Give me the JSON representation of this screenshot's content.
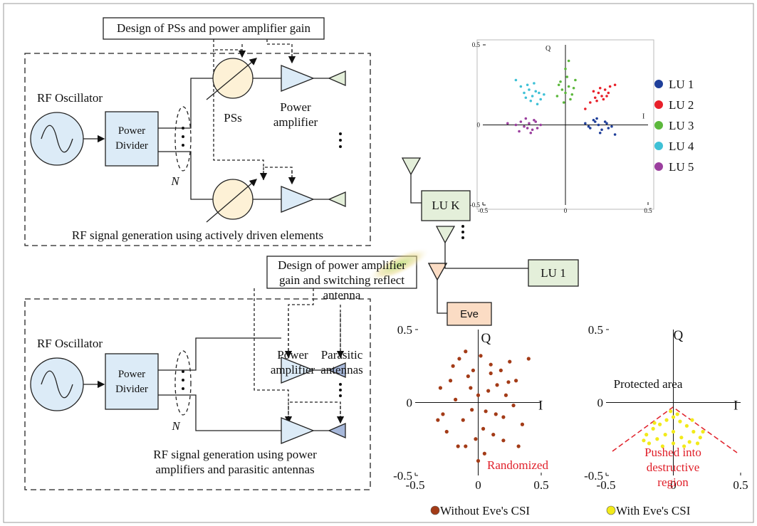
{
  "top_panel": {
    "label": "Design of PSs and power amplifier gain",
    "oscillator": "RF Oscillator",
    "divider": "Power Divider",
    "ps": "PSs",
    "amplifier": "Power amplifier",
    "n": "N",
    "caption": "RF signal generation using actively driven elements"
  },
  "bottom_panel": {
    "label": "Design of power amplifier gain and switching reflect antenna",
    "oscillator": "RF Oscillator",
    "divider": "Power Divider",
    "amplifier": "Power amplifier",
    "parasitic": "Parasitic antennas",
    "n": "N",
    "caption": "RF signal generation using power amplifiers and parasitic antennas"
  },
  "nodes": {
    "luk": "LU K",
    "lu1": "LU 1",
    "eve": "Eve"
  },
  "chart_data": [
    {
      "type": "scatter",
      "xlabel": "I",
      "ylabel": "Q",
      "xlim": [
        -0.5,
        0.5
      ],
      "ylim": [
        -0.5,
        0.5
      ],
      "xticks": [
        -0.5,
        0,
        0.5
      ],
      "yticks": [
        -0.5,
        0,
        0.5
      ],
      "legend": "right",
      "series": [
        {
          "name": "LU 1",
          "color": "#1f3f9a",
          "x": [
            0.12,
            0.15,
            0.18,
            0.2,
            0.22,
            0.25,
            0.28,
            0.17,
            0.21,
            0.24,
            0.14,
            0.3,
            0.19,
            0.26
          ],
          "y": [
            0.01,
            -0.02,
            0.02,
            0,
            -0.03,
            0.01,
            -0.01,
            0.03,
            -0.05,
            0.02,
            -0.01,
            -0.06,
            0.04,
            -0.02
          ]
        },
        {
          "name": "LU 2",
          "color": "#e8202a",
          "x": [
            0.15,
            0.18,
            0.2,
            0.22,
            0.24,
            0.27,
            0.19,
            0.23,
            0.26,
            0.3,
            0.17,
            0.21,
            0.25,
            0.12
          ],
          "y": [
            0.14,
            0.17,
            0.2,
            0.18,
            0.22,
            0.24,
            0.15,
            0.16,
            0.2,
            0.25,
            0.21,
            0.23,
            0.18,
            0.1
          ]
        },
        {
          "name": "LU 3",
          "color": "#5cb83c",
          "x": [
            -0.05,
            -0.02,
            0,
            0.02,
            0.04,
            -0.03,
            0.01,
            0.03,
            -0.01,
            0.05,
            0,
            -0.04,
            0.02,
            0.06
          ],
          "y": [
            0.18,
            0.22,
            0.2,
            0.24,
            0.19,
            0.27,
            0.3,
            0.16,
            0.14,
            0.23,
            0.35,
            0.25,
            0.4,
            0.28
          ]
        },
        {
          "name": "LU 4",
          "color": "#3fc1d6",
          "x": [
            -0.25,
            -0.22,
            -0.2,
            -0.18,
            -0.15,
            -0.23,
            -0.19,
            -0.16,
            -0.27,
            -0.21,
            -0.13,
            -0.3,
            -0.17,
            -0.24
          ],
          "y": [
            0.2,
            0.22,
            0.18,
            0.21,
            0.16,
            0.25,
            0.26,
            0.2,
            0.24,
            0.15,
            0.19,
            0.28,
            0.13,
            0.17
          ]
        },
        {
          "name": "LU 5",
          "color": "#9b3f9e",
          "x": [
            -0.3,
            -0.27,
            -0.25,
            -0.22,
            -0.2,
            -0.18,
            -0.15,
            -0.24,
            -0.21,
            -0.17,
            -0.28,
            -0.19,
            -0.35,
            -0.23
          ],
          "y": [
            0,
            0.02,
            -0.01,
            0.01,
            -0.03,
            0.02,
            0,
            0.04,
            -0.05,
            -0.02,
            -0.04,
            0.03,
            0.01,
            -0.02
          ]
        }
      ]
    },
    {
      "type": "scatter",
      "xlabel": "I",
      "ylabel": "Q",
      "xlim": [
        -0.5,
        0.5
      ],
      "ylim": [
        -0.5,
        0.5
      ],
      "xticks": [
        -0.5,
        0,
        0.5
      ],
      "yticks": [
        -0.5,
        0,
        0.5
      ],
      "legend": "bottom",
      "annotations": [
        "Randomized"
      ],
      "series": [
        {
          "name": "Without Eve's CSI",
          "color": "#a33b17",
          "x": [
            -0.3,
            -0.2,
            -0.1,
            0,
            0.1,
            0.2,
            0.3,
            -0.25,
            -0.15,
            -0.05,
            0.05,
            0.15,
            0.25,
            0.35,
            -0.28,
            -0.18,
            -0.08,
            0.02,
            0.12,
            0.22,
            0.32,
            -0.22,
            -0.12,
            -0.02,
            0.08,
            0.18,
            0.28,
            -0.16,
            -0.06,
            0.04,
            0.14,
            0.24,
            -0.1,
            0,
            0.1,
            0.2,
            -0.04,
            0.06,
            -0.32,
            0.4
          ],
          "y": [
            0.1,
            0.25,
            -0.3,
            0.05,
            0.2,
            -0.1,
            0.15,
            -0.2,
            0.3,
            -0.05,
            -0.35,
            0.12,
            0.28,
            -0.15,
            -0.08,
            0.02,
            0.18,
            0.32,
            -0.22,
            0.05,
            -0.3,
            0.15,
            -0.12,
            -0.25,
            0.08,
            0.22,
            -0.02,
            -0.3,
            0.1,
            -0.18,
            -0.08,
            0.14,
            0.35,
            -0.4,
            0.26,
            -0.26,
            0.22,
            -0.06,
            -0.12,
            0.3
          ]
        }
      ]
    },
    {
      "type": "scatter",
      "xlabel": "I",
      "ylabel": "Q",
      "xlim": [
        -0.5,
        0.5
      ],
      "ylim": [
        -0.5,
        0.5
      ],
      "xticks": [
        -0.5,
        0,
        0.5
      ],
      "yticks": [
        -0.5,
        0,
        0.5
      ],
      "legend": "bottom",
      "annotations": [
        "Protected area",
        "Pushed into destructive region"
      ],
      "series": [
        {
          "name": "With Eve's CSI",
          "color": "#f2ea1a",
          "x": [
            -0.2,
            -0.15,
            -0.1,
            -0.05,
            0,
            0.05,
            0.1,
            0.15,
            0.2,
            -0.12,
            -0.06,
            0,
            0.06,
            0.12,
            -0.08,
            0,
            0.08,
            -0.18,
            0.18,
            -0.02,
            0.03,
            -0.14,
            0.14,
            0.22,
            -0.22
          ],
          "y": [
            -0.22,
            -0.18,
            -0.15,
            -0.12,
            -0.1,
            -0.13,
            -0.16,
            -0.2,
            -0.24,
            -0.25,
            -0.22,
            -0.2,
            -0.24,
            -0.27,
            -0.3,
            -0.28,
            -0.3,
            -0.28,
            -0.28,
            -0.06,
            -0.08,
            -0.14,
            -0.12,
            -0.2,
            -0.26
          ]
        }
      ]
    }
  ]
}
